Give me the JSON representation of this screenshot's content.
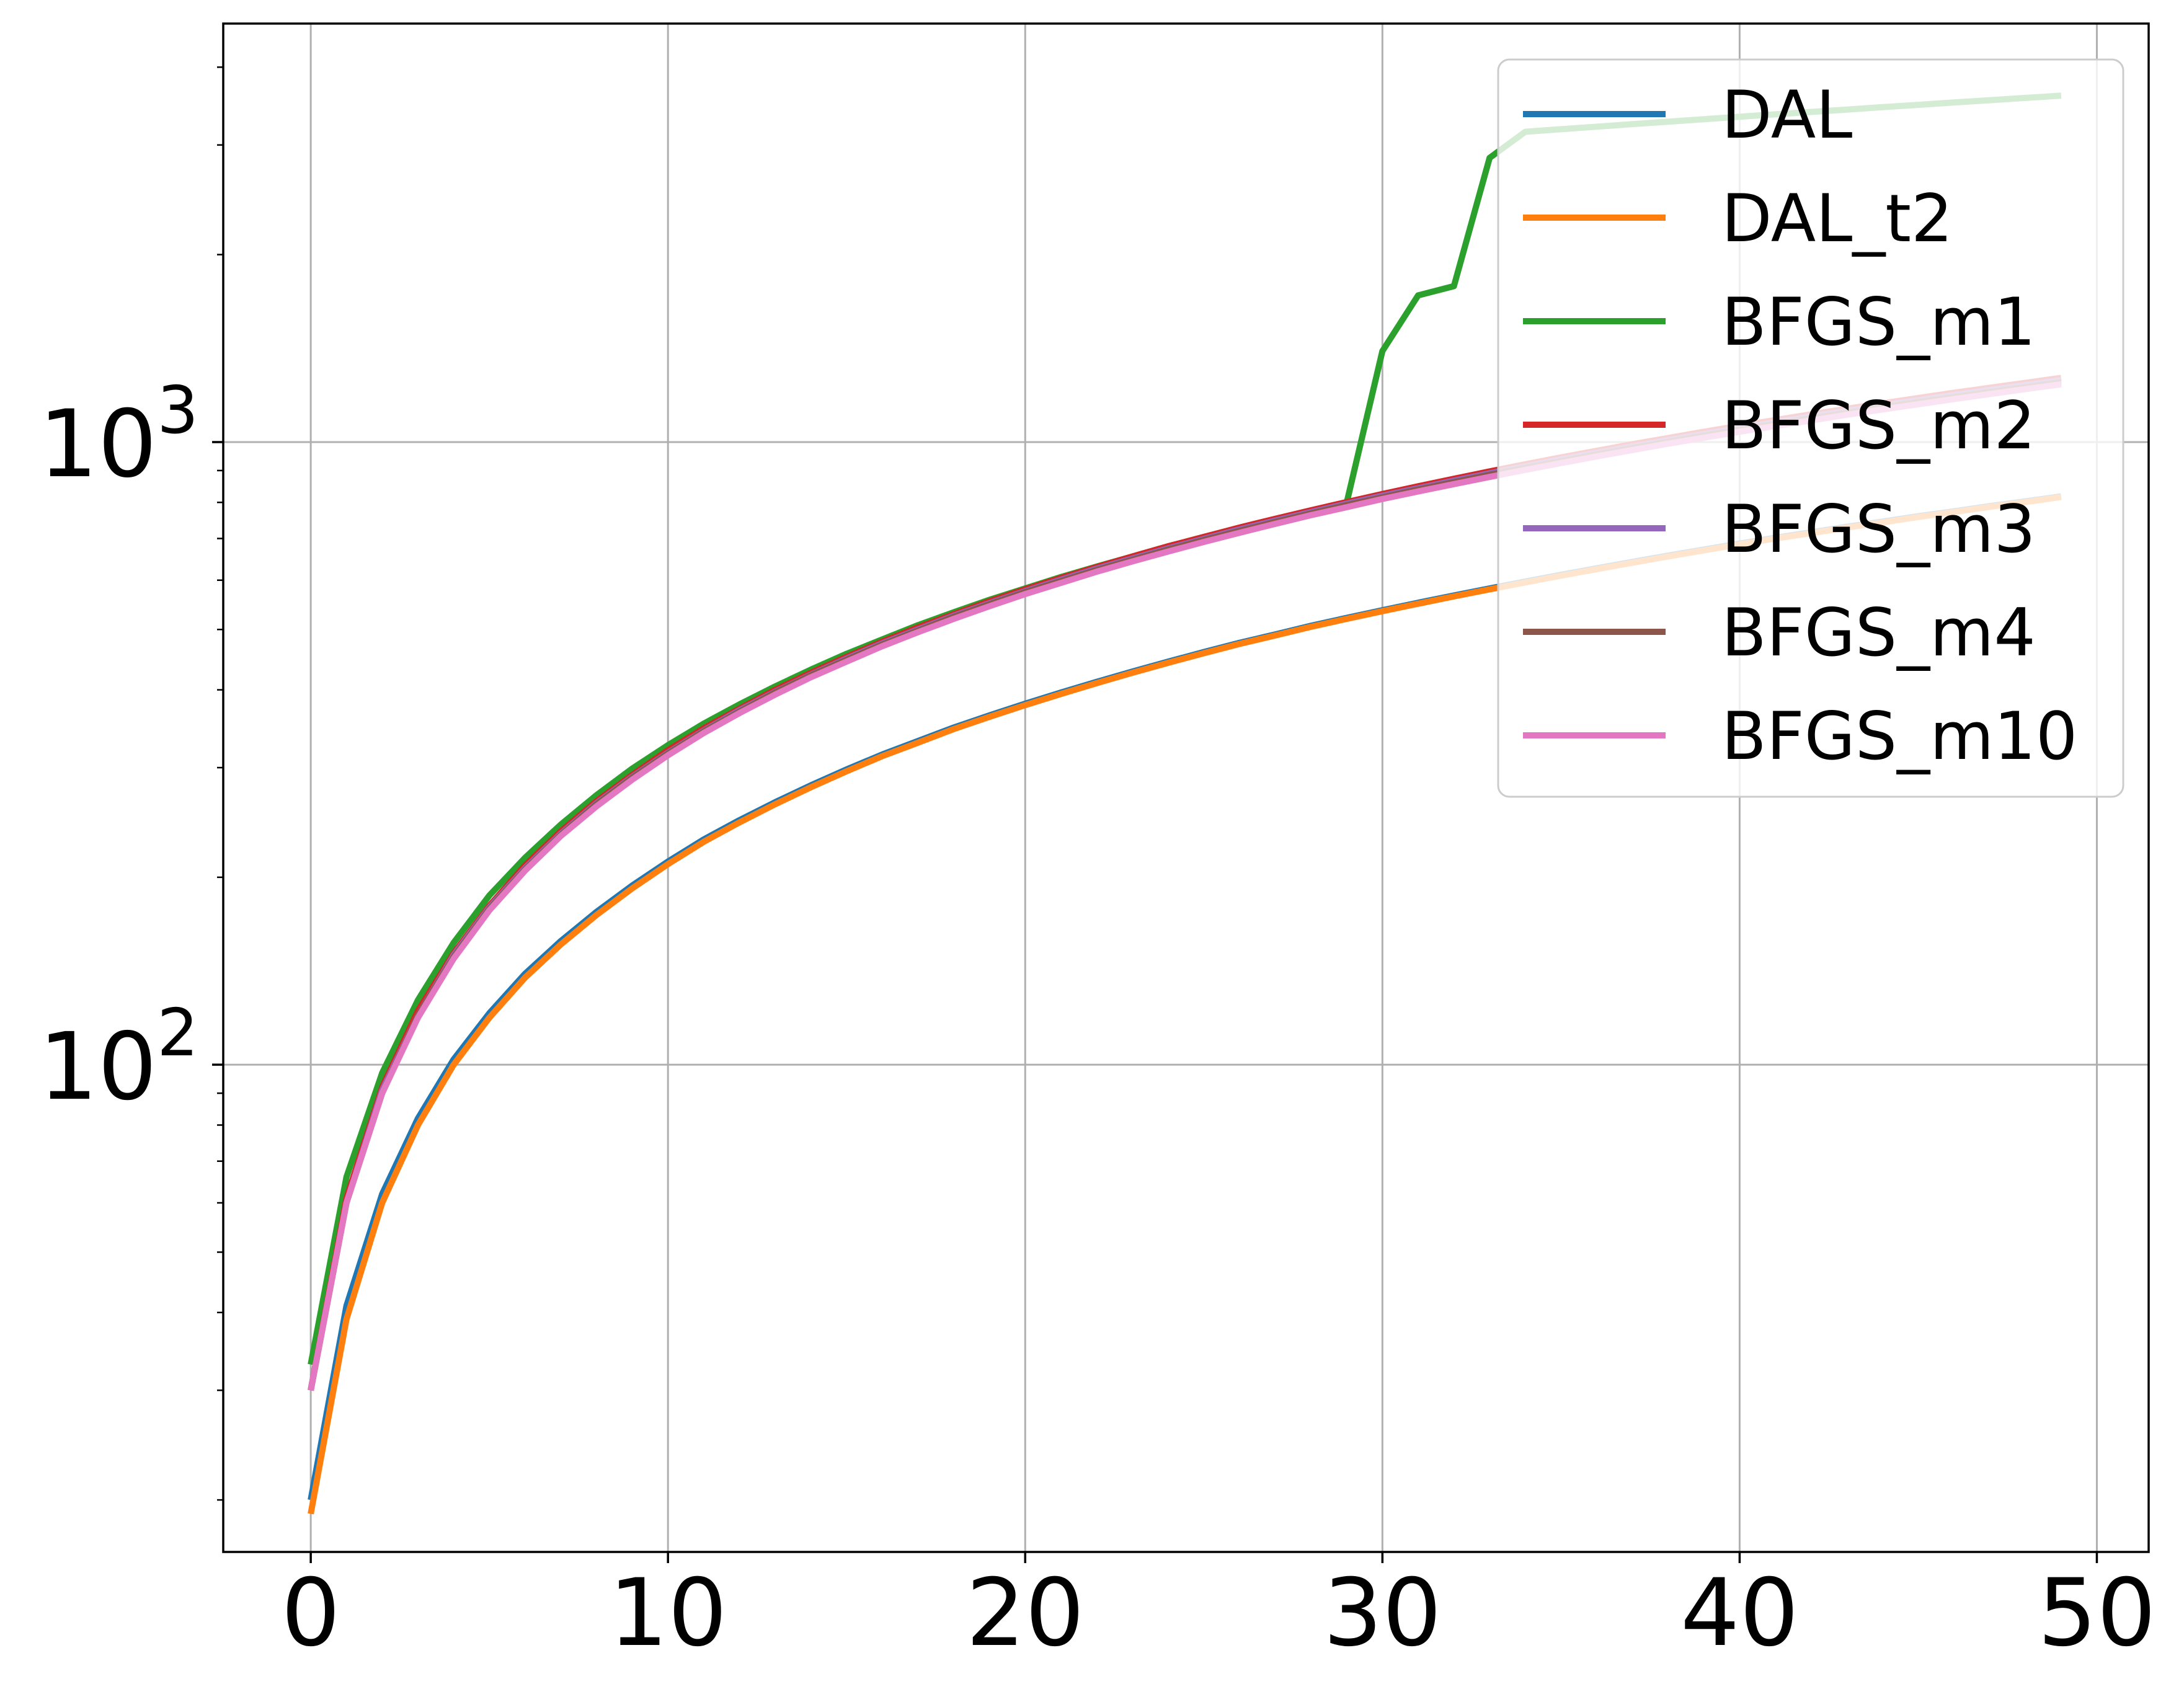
{
  "chart_data": {
    "type": "line",
    "title": "",
    "xlabel": "",
    "ylabel": "",
    "xlim": [
      -2.45,
      51.45
    ],
    "ylim": [
      16.5,
      4700
    ],
    "yscale": "log",
    "grid": true,
    "legend_position": "upper-right",
    "x_ticks": [
      {
        "value": 0,
        "label": "0"
      },
      {
        "value": 10,
        "label": "10"
      },
      {
        "value": 20,
        "label": "20"
      },
      {
        "value": 30,
        "label": "30"
      },
      {
        "value": 40,
        "label": "40"
      },
      {
        "value": 50,
        "label": "50"
      }
    ],
    "y_ticks": [
      {
        "value": 100,
        "base": "10",
        "exp": "2"
      },
      {
        "value": 1000,
        "base": "10",
        "exp": "3"
      }
    ],
    "x": [
      0,
      1,
      2,
      3,
      4,
      5,
      6,
      7,
      8,
      9,
      10,
      11,
      12,
      13,
      14,
      15,
      16,
      17,
      18,
      19,
      20,
      21,
      22,
      23,
      24,
      25,
      26,
      27,
      28,
      29,
      30,
      31,
      32,
      33,
      34,
      35,
      36,
      37,
      38,
      39,
      40,
      41,
      42,
      43,
      44,
      45,
      46,
      47,
      48,
      49
    ],
    "series": [
      {
        "name": "DAL",
        "color": "#1f77b4",
        "values": [
          20,
          41,
          62,
          82,
          102,
          121,
          140,
          158,
          176,
          194,
          212,
          230,
          247,
          264,
          281,
          298,
          315,
          331,
          348,
          364,
          380,
          396,
          412,
          428,
          444,
          460,
          476,
          491,
          507,
          522,
          537,
          552,
          567,
          582,
          597,
          612,
          627,
          642,
          657,
          672,
          687,
          702,
          716,
          731,
          745,
          760,
          774,
          789,
          803,
          818
        ]
      },
      {
        "name": "DAL_t2",
        "color": "#ff7f0e",
        "values": [
          19,
          39,
          60,
          80,
          100,
          119,
          138,
          156,
          174,
          192,
          210,
          228,
          245,
          262,
          279,
          296,
          313,
          329,
          346,
          362,
          378,
          394,
          410,
          426,
          442,
          458,
          474,
          489,
          505,
          520,
          535,
          550,
          565,
          580,
          595,
          610,
          625,
          640,
          655,
          670,
          685,
          700,
          714,
          729,
          743,
          758,
          772,
          787,
          801,
          816
        ]
      },
      {
        "name": "BFGS_m1",
        "color": "#2ca02c",
        "values": [
          33,
          66,
          97,
          127,
          157,
          187,
          215,
          243,
          271,
          299,
          326,
          353,
          379,
          405,
          431,
          457,
          482,
          508,
          533,
          558,
          582,
          607,
          631,
          655,
          680,
          704,
          728,
          751,
          775,
          799,
          1400,
          1720,
          1780,
          2860,
          3150,
          3180,
          3210,
          3240,
          3270,
          3300,
          3330,
          3360,
          3390,
          3420,
          3450,
          3480,
          3510,
          3540,
          3570,
          3600
        ]
      },
      {
        "name": "BFGS_m2",
        "color": "#d62728",
        "values": [
          30,
          61,
          92,
          122,
          151,
          180,
          209,
          237,
          265,
          292,
          320,
          347,
          373,
          400,
          426,
          452,
          478,
          504,
          529,
          555,
          580,
          605,
          630,
          655,
          680,
          704,
          729,
          753,
          777,
          801,
          825,
          849,
          873,
          897,
          921,
          945,
          968,
          992,
          1015,
          1039,
          1062,
          1085,
          1108,
          1131,
          1154,
          1177,
          1200,
          1222,
          1245,
          1268
        ]
      },
      {
        "name": "BFGS_m3",
        "color": "#9467bd",
        "values": [
          30,
          60,
          91,
          120,
          150,
          179,
          207,
          235,
          263,
          290,
          317,
          344,
          371,
          397,
          423,
          449,
          475,
          500,
          526,
          551,
          576,
          601,
          626,
          650,
          675,
          699,
          724,
          748,
          772,
          796,
          820,
          843,
          867,
          891,
          914,
          938,
          961,
          984,
          1007,
          1030,
          1053,
          1076,
          1099,
          1122,
          1145,
          1167,
          1190,
          1212,
          1235,
          1257
        ]
      },
      {
        "name": "BFGS_m4",
        "color": "#8c564b",
        "values": [
          30,
          60,
          90,
          120,
          149,
          178,
          206,
          234,
          262,
          289,
          316,
          343,
          369,
          396,
          422,
          447,
          473,
          498,
          524,
          549,
          574,
          598,
          623,
          647,
          672,
          696,
          720,
          744,
          768,
          792,
          815,
          839,
          862,
          886,
          909,
          932,
          955,
          978,
          1001,
          1024,
          1047,
          1069,
          1092,
          1114,
          1137,
          1159,
          1181,
          1203,
          1225,
          1247
        ]
      },
      {
        "name": "BFGS_m10",
        "color": "#e377c2",
        "values": [
          30,
          60,
          90,
          119,
          148,
          177,
          205,
          233,
          260,
          287,
          314,
          341,
          367,
          393,
          419,
          444,
          470,
          495,
          520,
          545,
          570,
          594,
          619,
          643,
          667,
          691,
          715,
          739,
          763,
          786,
          810,
          833,
          856,
          879,
          902,
          925,
          948,
          971,
          994,
          1016,
          1039,
          1061,
          1083,
          1106,
          1128,
          1150,
          1172,
          1194,
          1216,
          1238
        ]
      }
    ]
  }
}
